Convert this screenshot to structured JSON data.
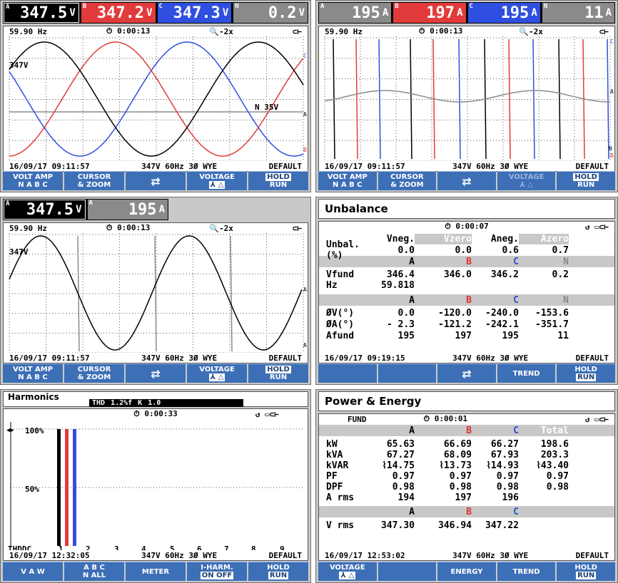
{
  "colors": {
    "a": "#000000",
    "b": "#e23b3b",
    "c": "#2f4fe0",
    "n": "#8a8a8a",
    "softkey": "#3d6fb6"
  },
  "p1": {
    "readings": [
      {
        "ph": "A",
        "val": "347.5",
        "unit": "V"
      },
      {
        "ph": "B",
        "val": "347.2",
        "unit": "V"
      },
      {
        "ph": "C",
        "val": "347.3",
        "unit": "V"
      },
      {
        "ph": "N",
        "val": "0.2",
        "unit": "V"
      }
    ],
    "freq": "59.90 Hz",
    "time": "0:00:13",
    "zoom": "-2x",
    "label_left": "347V",
    "label_n": "N  35V",
    "label_a": "A",
    "label_b": "B",
    "label_c": "C",
    "date": "16/09/17  09:11:57",
    "cfg": "347V  60Hz 3Ø WYE",
    "mode": "DEFAULT",
    "keys": [
      {
        "t1": "VOLT AMP",
        "t2": "N  A  B  C"
      },
      {
        "t1": "CURSOR",
        "t2": "& ZOOM"
      },
      {
        "t1": "⇄",
        "t2": ""
      },
      {
        "t1": "VOLTAGE",
        "t2": "⅄  △"
      },
      {
        "t1": "HOLD",
        "t2": "RUN"
      }
    ]
  },
  "p2": {
    "readings": [
      {
        "ph": "A",
        "val": "195",
        "unit": "A"
      },
      {
        "ph": "B",
        "val": "197",
        "unit": "A"
      },
      {
        "ph": "C",
        "val": "195",
        "unit": "A"
      },
      {
        "ph": "N",
        "val": "11",
        "unit": "A"
      }
    ],
    "freq": "59.90 Hz",
    "time": "0:00:13",
    "zoom": "-2x",
    "label_c": "C",
    "label_a": "A",
    "label_n": "N",
    "label_b": "B",
    "date": "16/09/17  09:11:57",
    "cfg": "347V  60Hz 3Ø WYE",
    "mode": "DEFAULT",
    "keys": [
      {
        "t1": "VOLT AMP",
        "t2": "N  A  B  C"
      },
      {
        "t1": "CURSOR",
        "t2": "& ZOOM"
      },
      {
        "t1": "⇄",
        "t2": ""
      },
      {
        "t1": "VOLTAGE",
        "t2": "⅄  △"
      },
      {
        "t1": "HOLD",
        "t2": "RUN"
      }
    ]
  },
  "p3": {
    "readings": [
      {
        "ph": "A",
        "val": "347.5",
        "unit": "V"
      },
      {
        "ph": "A",
        "val": "195",
        "unit": "A"
      }
    ],
    "freq": "59.90 Hz",
    "time": "0:00:13",
    "zoom": "-2x",
    "label_left": "347V",
    "label_a": "A",
    "label_a2": "A",
    "date": "16/09/17  09:11:57",
    "cfg": "347V  60Hz 3Ø WYE",
    "mode": "DEFAULT",
    "keys": [
      {
        "t1": "VOLT AMP",
        "t2": "N  A  B  C"
      },
      {
        "t1": "CURSOR",
        "t2": "& ZOOM"
      },
      {
        "t1": "⇄",
        "t2": ""
      },
      {
        "t1": "VOLTAGE",
        "t2": "⅄  △"
      },
      {
        "t1": "HOLD",
        "t2": "RUN"
      }
    ]
  },
  "p4": {
    "title": "Unbalance",
    "time": "0:00:07",
    "h1": [
      "",
      "Vneg.",
      "Vzero",
      "Aneg.",
      "Azero"
    ],
    "r1": [
      "Unbal.(%)",
      "0.0",
      "0.0",
      "0.6",
      "0.7"
    ],
    "h2": [
      "",
      "A",
      "B",
      "C",
      "N"
    ],
    "r2": [
      "Vfund",
      "346.4",
      "346.0",
      "346.2",
      "0.2"
    ],
    "r3": [
      "Hz",
      "59.818",
      "",
      "",
      ""
    ],
    "h3": [
      "",
      "A",
      "B",
      "C",
      "N"
    ],
    "r4": [
      "ØV(°)",
      "0.0",
      "-120.0",
      "-240.0",
      "-153.6"
    ],
    "r5": [
      "ØA(°)",
      "- 2.3",
      "-121.2",
      "-242.1",
      "-351.7"
    ],
    "r6": [
      "Afund",
      "195",
      "197",
      "195",
      "11"
    ],
    "date": "16/09/17  09:19:15",
    "cfg": "347V  60Hz 3Ø WYE",
    "mode": "DEFAULT",
    "keys": [
      {
        "t1": "",
        "t2": ""
      },
      {
        "t1": "",
        "t2": ""
      },
      {
        "t1": "⇄",
        "t2": ""
      },
      {
        "t1": "TREND",
        "t2": ""
      },
      {
        "t1": "HOLD",
        "t2": "RUN"
      }
    ]
  },
  "p5": {
    "title": "Harmonics",
    "thd_label": "THD",
    "thd_val": "1.2%f",
    "k_label": "K",
    "k_val": "1.0",
    "time": "0:00:33",
    "y100": "100%",
    "y50": "50%",
    "xticks": [
      "THDDC",
      "1",
      "2",
      "3",
      "4",
      "5",
      "6",
      "7",
      "8",
      "9"
    ],
    "date": "16/09/17  12:32:05",
    "cfg": "347V  60Hz 3Ø WYE",
    "mode": "DEFAULT",
    "keys": [
      {
        "t1": "V A W",
        "t2": ""
      },
      {
        "t1": "A  B  C",
        "t2": "N  ALL"
      },
      {
        "t1": "METER",
        "t2": ""
      },
      {
        "t1": "I-HARM.",
        "t2": "ON  OFF"
      },
      {
        "t1": "HOLD",
        "t2": "RUN"
      }
    ]
  },
  "p6": {
    "title": "Power & Energy",
    "fund": "FUND",
    "time": "0:00:01",
    "h1": [
      "",
      "A",
      "B",
      "C",
      "Total"
    ],
    "rows": [
      [
        "kW",
        "65.63",
        "66.69",
        "66.27",
        "198.6"
      ],
      [
        "kVA",
        "67.27",
        "68.09",
        "67.93",
        "203.3"
      ],
      [
        "kVAR",
        "⌇14.75",
        "⌇13.73",
        "⌇14.93",
        "⌇43.40"
      ],
      [
        "PF",
        "0.97",
        "0.97",
        "0.97",
        "0.97"
      ],
      [
        "DPF",
        "0.98",
        "0.98",
        "0.98",
        "0.98"
      ],
      [
        "A rms",
        "194",
        "197",
        "196",
        ""
      ]
    ],
    "h2": [
      "",
      "A",
      "B",
      "C",
      ""
    ],
    "vrms": [
      "V rms",
      "347.30",
      "346.94",
      "347.22",
      ""
    ],
    "date": "16/09/17  12:53:02",
    "cfg": "347V  60Hz 3Ø WYE",
    "mode": "DEFAULT",
    "keys": [
      {
        "t1": "VOLTAGE",
        "t2": "⅄  △"
      },
      {
        "t1": "",
        "t2": ""
      },
      {
        "t1": "ENERGY",
        "t2": ""
      },
      {
        "t1": "TREND",
        "t2": ""
      },
      {
        "t1": "HOLD",
        "t2": "RUN"
      }
    ]
  }
}
